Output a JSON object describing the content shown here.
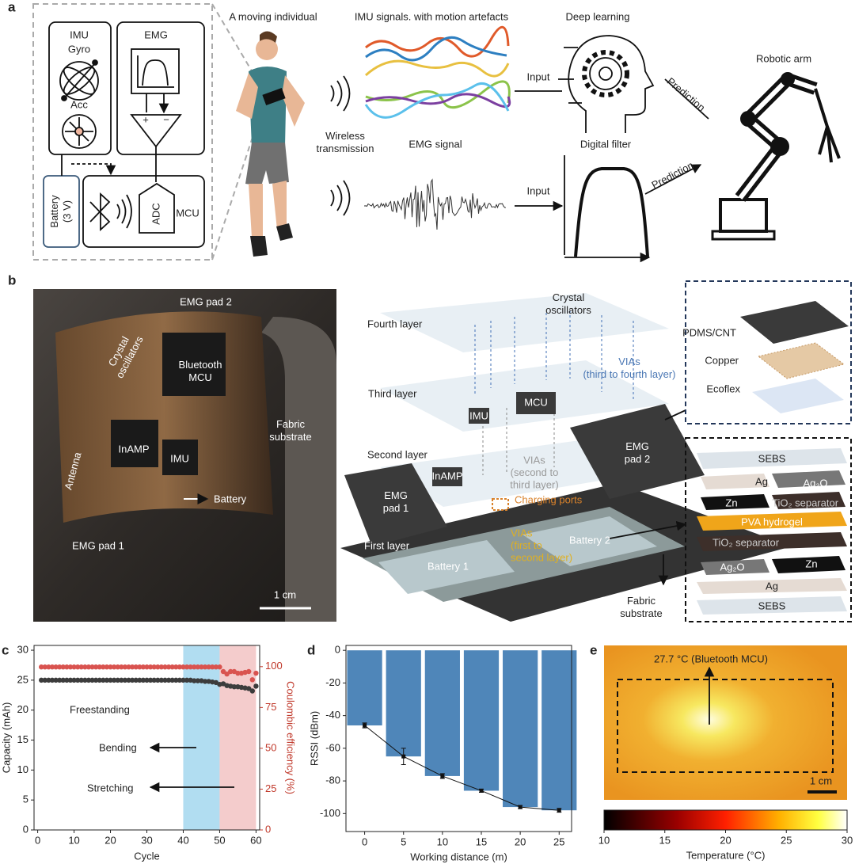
{
  "panel_labels": [
    "a",
    "b",
    "c",
    "d",
    "e"
  ],
  "panel_a": {
    "device": {
      "imu": "IMU",
      "gyro": "Gyro",
      "acc": "Acc",
      "emg": "EMG",
      "battery": "Battery\n(3 V)",
      "adc": "ADC",
      "mcu": "MCU",
      "plus": "+",
      "minus": "−"
    },
    "moving_individual": "A moving individual",
    "imu_signals": "IMU signals. with motion artefacts",
    "deep_learning": "Deep learning",
    "robotic_arm": "Robotic arm",
    "wireless": "Wireless\ntransmission",
    "emg_signal": "EMG signal",
    "digital_filter": "Digital filter",
    "inputs": [
      "Input",
      "Input"
    ],
    "predictions": [
      "Prediction",
      "Prediction"
    ]
  },
  "panel_b": {
    "photo": {
      "emg_pad_2": "EMG pad 2",
      "crystal": "Crystal\noscillators",
      "bluetooth_mcu": "Bluetooth\nMCU",
      "fabric": "Fabric\nsubstrate",
      "antenna": "Antenna",
      "inamp": "InAMP",
      "imu": "IMU",
      "battery": "Battery",
      "emg_pad_1": "EMG pad 1",
      "scale": "1 cm"
    },
    "exploded": {
      "fourth": "Fourth layer",
      "third": "Third layer",
      "second": "Second layer",
      "first": "First layer",
      "crystal": "Crystal\noscillators",
      "vias_34": "VIAs\n(third to fourth layer)",
      "mcu": "MCU",
      "imu": "IMU",
      "inamp": "InAMP",
      "vias_23": "VIAs\n(second to\nthird layer)",
      "charging": "Charging ports",
      "vias_12": "VIAs\n(first to\nsecond layer)",
      "battery_1": "Battery 1",
      "battery_2": "Battery 2",
      "pad_1": "EMG\npad 1",
      "pad_2": "EMG\npad 2",
      "fabric": "Fabric\nsubstrate"
    },
    "pad_layers": [
      "PDMS/CNT",
      "Copper",
      "Ecoflex"
    ],
    "battery_layers": [
      "SEBS",
      "Ag",
      "Ag₂O",
      "Zn",
      "TiO₂ separator",
      "PVA hydrogel",
      "TiO₂ separator",
      "Ag₂O",
      "Zn",
      "Ag",
      "SEBS"
    ]
  },
  "chart_data": [
    {
      "type": "scatter",
      "x_label": "Cycle",
      "y_label": "Capacity (mAh)",
      "y2_label": "Coulombic efficiency (%)",
      "x": [
        1,
        2,
        3,
        4,
        5,
        6,
        7,
        8,
        9,
        10,
        11,
        12,
        13,
        14,
        15,
        16,
        17,
        18,
        19,
        20,
        21,
        22,
        23,
        24,
        25,
        26,
        27,
        28,
        29,
        30,
        31,
        32,
        33,
        34,
        35,
        36,
        37,
        38,
        39,
        40,
        41,
        42,
        43,
        44,
        45,
        46,
        47,
        48,
        49,
        50,
        51,
        52,
        53,
        54,
        55,
        56,
        57,
        58,
        59,
        60
      ],
      "series": [
        {
          "color": "#3c3c3c",
          "values": [
            25,
            25,
            25,
            25,
            25,
            25,
            25,
            25,
            25,
            25,
            25,
            25,
            25,
            25,
            25,
            25,
            25,
            25,
            25,
            25,
            25,
            25,
            25,
            25,
            25,
            25,
            25,
            25,
            25,
            25,
            25,
            25,
            25,
            25,
            25,
            25,
            25,
            25,
            25,
            25,
            25,
            25,
            24.9,
            24.9,
            24.9,
            24.8,
            24.8,
            24.7,
            24.6,
            24.3,
            24.4,
            24.1,
            24.0,
            23.9,
            23.9,
            23.8,
            23.7,
            23.6,
            23.2,
            24.0
          ]
        },
        {
          "color": "#d9534f",
          "axis": "y2",
          "values": [
            99.8,
            99.8,
            99.8,
            99.8,
            99.8,
            99.8,
            99.8,
            99.8,
            99.8,
            99.8,
            99.8,
            99.8,
            99.8,
            99.8,
            99.8,
            99.8,
            99.8,
            99.8,
            99.8,
            99.8,
            99.8,
            99.8,
            99.8,
            99.8,
            99.8,
            99.8,
            99.8,
            99.8,
            99.8,
            99.8,
            99.8,
            99.8,
            99.8,
            99.8,
            99.8,
            99.8,
            99.8,
            99.8,
            99.8,
            99.8,
            99.8,
            99.8,
            99.8,
            99.8,
            99.8,
            99.8,
            99.8,
            99.8,
            99.8,
            99.8,
            97,
            95.5,
            97,
            97,
            96,
            96,
            96.5,
            97,
            92,
            96
          ]
        }
      ],
      "regions": [
        {
          "from": 40,
          "to": 50,
          "color": "#a9d9ef"
        },
        {
          "from": 50,
          "to": 60,
          "color": "#f3c6c6"
        }
      ],
      "annotations": [
        "Freestanding",
        "Bending",
        "Stretching"
      ],
      "xlim": [
        -1,
        61
      ],
      "xticks": [
        0,
        10,
        20,
        30,
        40,
        50,
        60
      ],
      "ylim": [
        0,
        30.8
      ],
      "yticks": [
        0,
        5,
        10,
        15,
        20,
        25,
        30
      ],
      "y2lim": [
        0,
        113
      ],
      "y2ticks": [
        0,
        25,
        50,
        75,
        100
      ]
    },
    {
      "type": "bar",
      "x_label": "Working distance (m)",
      "y_label": "RSSI (dBm)",
      "x": [
        0,
        5,
        10,
        15,
        20,
        25
      ],
      "values": [
        -46,
        -65,
        -77,
        -86,
        -96,
        -98
      ],
      "errors": [
        1.5,
        5,
        1.5,
        1,
        1,
        1.2
      ],
      "color": "#4f86b9",
      "xlim": [
        -2.4,
        26.6
      ],
      "xticks": [
        0,
        5,
        10,
        15,
        20,
        25
      ],
      "ylim": [
        -111,
        3
      ],
      "yticks": [
        0,
        -20,
        -40,
        -60,
        -80,
        -100
      ]
    },
    {
      "type": "heatmap",
      "annotation": "27.7 °C (Bluetooth MCU)",
      "scale_bar": "1 cm",
      "colorbar_label": "Temperature (°C)",
      "clim": [
        10,
        30
      ],
      "cticks": [
        10,
        15,
        20,
        25,
        30
      ]
    }
  ]
}
